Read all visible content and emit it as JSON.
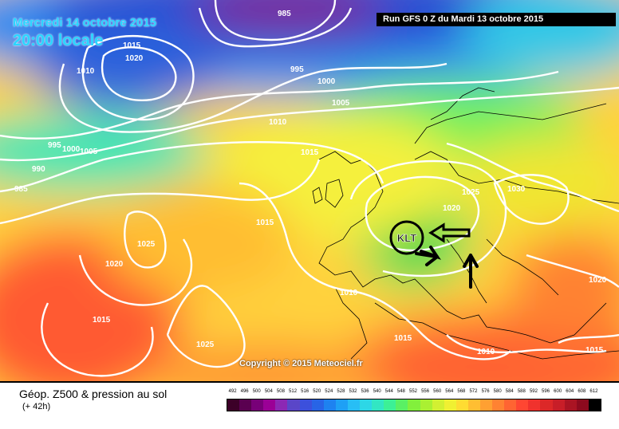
{
  "header": {
    "date": "Mercredi 14 octobre 2015",
    "time": "20:00 locale",
    "run": "Run GFS 0 Z du Mardi 13 octobre 2015"
  },
  "copyright": "Copyright © 2015 Meteociel.fr",
  "footer": {
    "title": "Géop. Z500 & pression au sol",
    "lead": "(+ 42h)"
  },
  "annotation": {
    "label": "KLT",
    "color": "#000000"
  },
  "isobar_labels": [
    "985",
    "1015",
    "1020",
    "1010",
    "995",
    "1000",
    "1005",
    "1010",
    "995",
    "1000",
    "1005",
    "990",
    "985",
    "1015",
    "1025",
    "1020",
    "1015",
    "1030",
    "1025",
    "1020",
    "1015",
    "1025",
    "1010",
    "1015",
    "1010",
    "1020",
    "1015"
  ],
  "scale": {
    "values": [
      "492",
      "496",
      "500",
      "504",
      "508",
      "512",
      "516",
      "520",
      "524",
      "528",
      "532",
      "536",
      "540",
      "544",
      "548",
      "552",
      "556",
      "560",
      "564",
      "568",
      "572",
      "576",
      "580",
      "584",
      "588",
      "592",
      "596",
      "600",
      "604",
      "608",
      "612"
    ],
    "colors": [
      "#3c0028",
      "#5a0050",
      "#780078",
      "#9b0096",
      "#8c28b4",
      "#5a46c8",
      "#3c50dc",
      "#2864e6",
      "#1e82f0",
      "#1ea0f5",
      "#28bef5",
      "#2dd7e6",
      "#32e6c3",
      "#3cf096",
      "#5af064",
      "#82f03c",
      "#aaf032",
      "#d2f032",
      "#f0f032",
      "#ffdc32",
      "#ffbe32",
      "#ffa032",
      "#ff8232",
      "#ff6432",
      "#ff4632",
      "#f0322d",
      "#dc2828",
      "#c81e28",
      "#aa1423",
      "#8c0a1e",
      "#000000"
    ]
  }
}
